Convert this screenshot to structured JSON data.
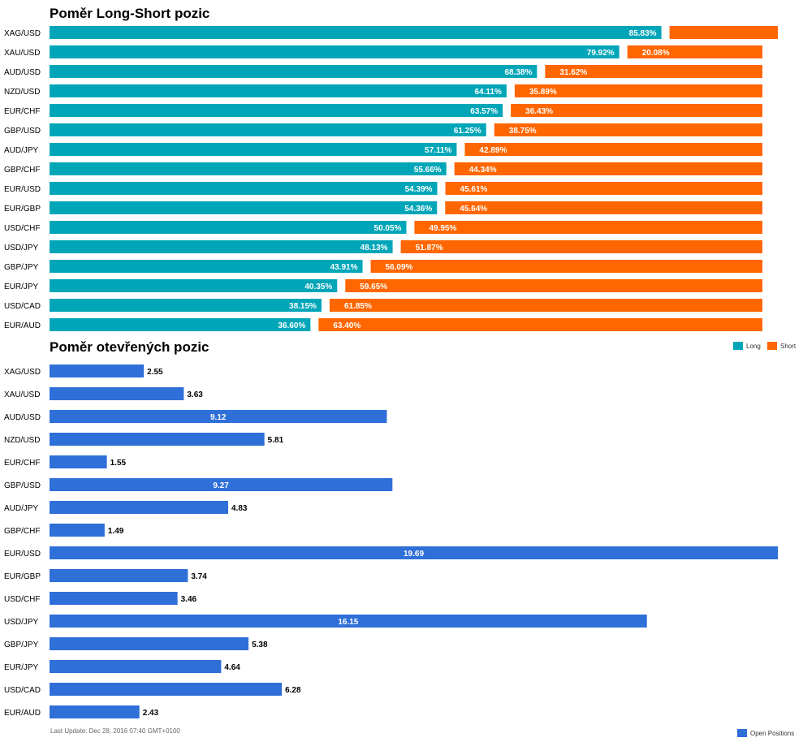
{
  "colors": {
    "long": "#00a6b8",
    "short": "#ff6600",
    "open": "#2f6fd8"
  },
  "chart_data": [
    {
      "type": "bar",
      "stacked": true,
      "orientation": "horizontal",
      "title": "Poměr Long-Short pozic",
      "categories": [
        "XAG/USD",
        "XAU/USD",
        "AUD/USD",
        "NZD/USD",
        "EUR/CHF",
        "GBP/USD",
        "AUD/JPY",
        "GBP/CHF",
        "EUR/USD",
        "EUR/GBP",
        "USD/CHF",
        "USD/JPY",
        "GBP/JPY",
        "EUR/JPY",
        "USD/CAD",
        "EUR/AUD"
      ],
      "series": [
        {
          "name": "Long",
          "values": [
            85.83,
            79.92,
            68.38,
            64.11,
            63.57,
            61.25,
            57.11,
            55.66,
            54.39,
            54.36,
            50.05,
            48.13,
            43.91,
            40.35,
            38.15,
            36.6
          ]
        },
        {
          "name": "Short",
          "values": [
            14.17,
            20.08,
            31.62,
            35.89,
            36.43,
            38.75,
            42.89,
            44.34,
            45.61,
            45.64,
            49.95,
            51.87,
            56.09,
            59.65,
            61.85,
            63.4
          ]
        }
      ],
      "labels_long": [
        "85.83%",
        "79.92%",
        "68.38%",
        "64.11%",
        "63.57%",
        "61.25%",
        "57.11%",
        "55.66%",
        "54.39%",
        "54.36%",
        "50.05%",
        "48.13%",
        "43.91%",
        "40.35%",
        "38.15%",
        "36.60%"
      ],
      "labels_short": [
        "",
        "20.08%",
        "31.62%",
        "35.89%",
        "36.43%",
        "38.75%",
        "42.89%",
        "44.34%",
        "45.61%",
        "45.64%",
        "49.95%",
        "51.87%",
        "56.09%",
        "59.65%",
        "61.85%",
        "63.40%"
      ],
      "legend": [
        "Long",
        "Short"
      ],
      "legend_position": "bottom-right"
    },
    {
      "type": "bar",
      "orientation": "horizontal",
      "title": "Poměr otevřených pozic",
      "categories": [
        "XAG/USD",
        "XAU/USD",
        "AUD/USD",
        "NZD/USD",
        "EUR/CHF",
        "GBP/USD",
        "AUD/JPY",
        "GBP/CHF",
        "EUR/USD",
        "EUR/GBP",
        "USD/CHF",
        "USD/JPY",
        "GBP/JPY",
        "EUR/JPY",
        "USD/CAD",
        "EUR/AUD"
      ],
      "series": [
        {
          "name": "Open Positions",
          "values": [
            2.55,
            3.63,
            9.12,
            5.81,
            1.55,
            9.27,
            4.83,
            1.49,
            19.69,
            3.74,
            3.46,
            16.15,
            5.38,
            4.64,
            6.28,
            2.43
          ]
        }
      ],
      "labels": [
        "2.55",
        "3.63",
        "9.12",
        "5.81",
        "1.55",
        "9.27",
        "4.83",
        "1.49",
        "19.69",
        "3.74",
        "3.46",
        "16.15",
        "5.38",
        "4.64",
        "6.28",
        "2.43"
      ],
      "xlim": [
        0,
        19.69
      ],
      "legend": [
        "Open Positions"
      ],
      "legend_position": "bottom-right"
    }
  ],
  "footer": "Last Update: Dec 28, 2016 07:40 GMT+0100"
}
